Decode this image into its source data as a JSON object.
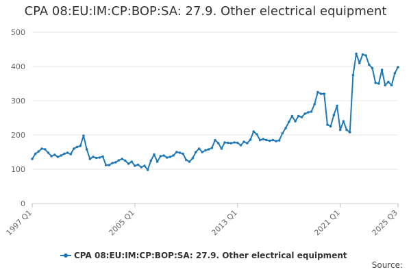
{
  "chart_data": {
    "type": "line",
    "title": "CPA 08:EU:IM:CP:BOP:SA: 27.9. Other electrical equipment",
    "xlabel": "",
    "ylabel": "",
    "ylim": [
      0,
      500
    ],
    "yticks": [
      0,
      100,
      200,
      300,
      400,
      500
    ],
    "x_start": "1997 Q1",
    "x_end": "2025 Q3",
    "xticks": [
      "1997 Q1",
      "2005 Q1",
      "2013 Q1",
      "2021 Q1",
      "2025 Q3"
    ],
    "grid": true,
    "legend_position": "bottom",
    "series": [
      {
        "name": "CPA 08:EU:IM:CP:BOP:SA: 27.9. Other electrical equipment",
        "color": "#1f78b4",
        "values": [
          130,
          145,
          152,
          160,
          158,
          148,
          138,
          142,
          136,
          140,
          145,
          148,
          144,
          160,
          165,
          168,
          198,
          158,
          130,
          136,
          133,
          134,
          137,
          112,
          112,
          118,
          120,
          126,
          130,
          125,
          116,
          122,
          110,
          113,
          106,
          110,
          98,
          125,
          143,
          122,
          138,
          140,
          134,
          136,
          140,
          150,
          148,
          145,
          127,
          122,
          132,
          150,
          160,
          150,
          155,
          158,
          162,
          185,
          176,
          160,
          178,
          177,
          176,
          178,
          177,
          170,
          180,
          176,
          186,
          210,
          202,
          185,
          188,
          185,
          183,
          185,
          182,
          184,
          205,
          220,
          238,
          255,
          240,
          255,
          252,
          262,
          266,
          268,
          290,
          325,
          320,
          320,
          230,
          225,
          258,
          285,
          215,
          240,
          215,
          208,
          375,
          437,
          410,
          435,
          432,
          405,
          395,
          352,
          350,
          390,
          345,
          355,
          345,
          380,
          398
        ]
      }
    ],
    "source_label": "Source:"
  }
}
